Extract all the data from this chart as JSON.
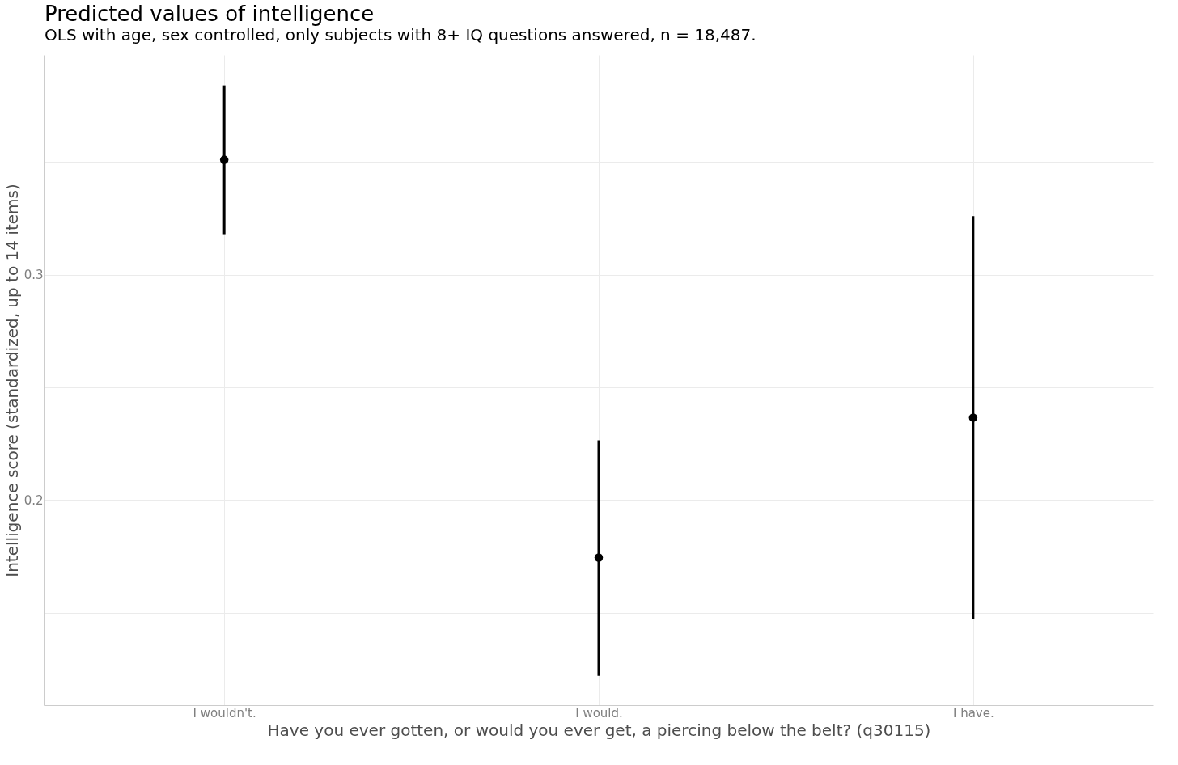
{
  "chart_data": {
    "type": "scatter",
    "title": "Predicted values of intelligence",
    "subtitle": "OLS with age, sex controlled, only subjects with 8+ IQ questions answered, n = 18,487.",
    "xlabel": "Have you ever gotten, or would you ever get, a piercing below the belt? (q30115)",
    "ylabel": "Intelligence score (standardized, up to 14 items)",
    "categories": [
      "I wouldn't.",
      "I would.",
      "I have."
    ],
    "values": [
      0.351,
      0.1745,
      0.2366
    ],
    "errors": [
      [
        0.318,
        0.384
      ],
      [
        0.122,
        0.2265
      ],
      [
        0.147,
        0.326
      ]
    ],
    "color": "#000000",
    "ylim": [
      0.109,
      0.3975
    ],
    "yticks": [
      {
        "value": 0.15,
        "label": null
      },
      0.2,
      {
        "value": 0.25,
        "label": null
      },
      0.3,
      {
        "value": 0.35,
        "label": null
      }
    ],
    "grid": true,
    "marker": "circle"
  }
}
